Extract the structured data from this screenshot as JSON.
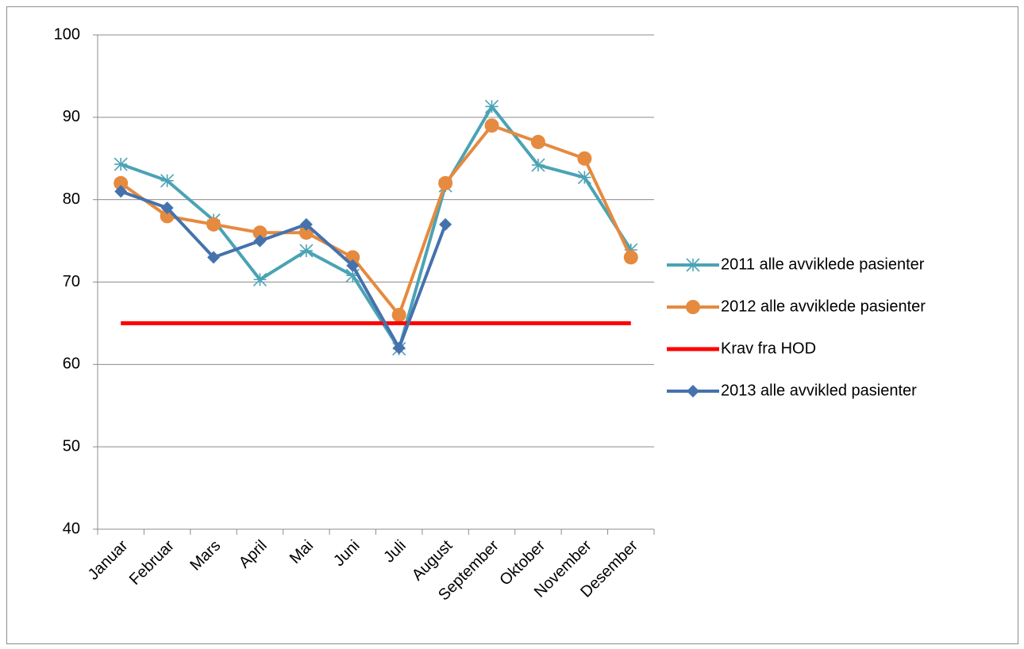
{
  "chart_data": {
    "type": "line",
    "categories": [
      "Januar",
      "Februar",
      "Mars",
      "April",
      "Mai",
      "Juni",
      "Juli",
      "August",
      "September",
      "Oktober",
      "November",
      "Desember"
    ],
    "series": [
      {
        "name": "2011 alle avviklede pasienter",
        "color": "#4aa3b5",
        "marker": "asterisk",
        "values": [
          84.3,
          82.3,
          77.5,
          70.3,
          73.8,
          70.8,
          61.9,
          81.7,
          91.3,
          84.2,
          82.7,
          73.9
        ]
      },
      {
        "name": "2012 alle avviklede pasienter",
        "color": "#e58a3f",
        "marker": "circle",
        "values": [
          82,
          78,
          77,
          76,
          76,
          73,
          66,
          82,
          89,
          87,
          85,
          73
        ]
      },
      {
        "name": "Krav fra HOD",
        "color": "#ff0000",
        "marker": "none",
        "values": [
          65,
          65,
          65,
          65,
          65,
          65,
          65,
          65,
          65,
          65,
          65,
          65
        ]
      },
      {
        "name": "2013 alle avvikled pasienter",
        "color": "#4572ad",
        "marker": "diamond",
        "values": [
          81,
          79,
          73,
          75,
          77,
          72,
          62,
          77,
          null,
          null,
          null,
          null
        ]
      }
    ],
    "ylim": [
      40,
      100
    ],
    "yticks": [
      40,
      50,
      60,
      70,
      80,
      90,
      100
    ],
    "grid": true,
    "legend": "right"
  }
}
